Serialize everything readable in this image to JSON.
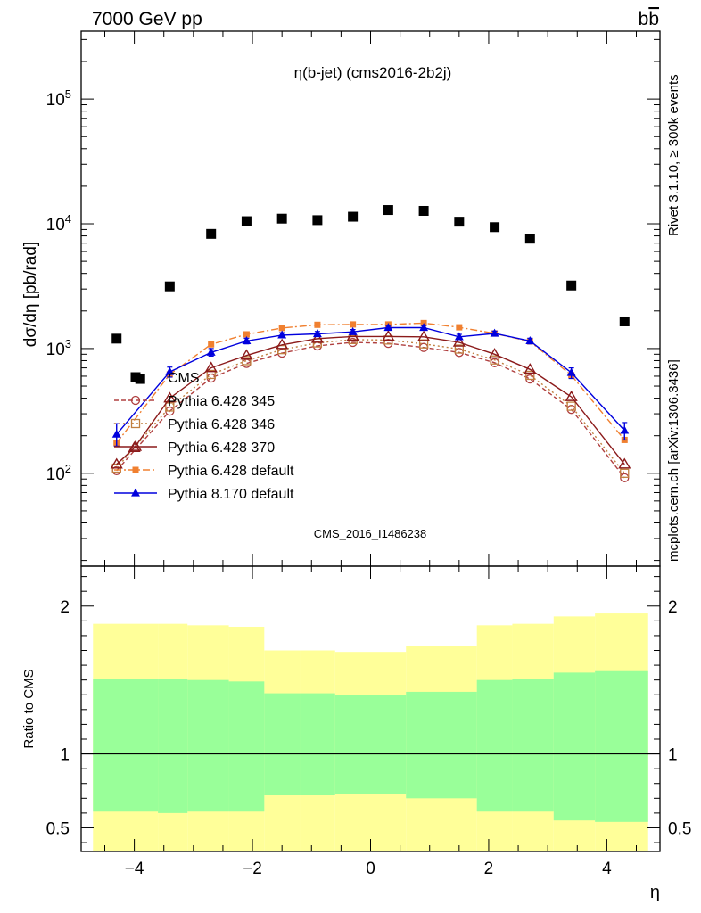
{
  "header": {
    "left": "7000 GeV pp",
    "right_base": "b",
    "right_bar": "b"
  },
  "side_labels": {
    "top": "Rivet 3.1.10, ≥ 300k events",
    "bottom": "mcplots.cern.ch [arXiv:1306.3436]"
  },
  "chart_data": [
    {
      "type": "scatter",
      "title": "η(b-jet) (cms2016-2b2j)",
      "watermark": "CMS_2016_I1486238",
      "ylabel": "dσ/dη [pb/rad]",
      "yscale": "log",
      "ylim": [
        18,
        350000
      ],
      "xlim": [
        -4.9,
        4.9
      ],
      "x": [
        -4.3,
        -3.9,
        -3.4,
        -2.7,
        -2.1,
        -1.5,
        -0.9,
        -0.3,
        0.3,
        0.9,
        1.5,
        2.1,
        2.7,
        3.4,
        4.3
      ],
      "y_ticks": [
        {
          "value": 100,
          "base": "10",
          "exp": "2"
        },
        {
          "value": 1000,
          "base": "10",
          "exp": "3"
        },
        {
          "value": 10000,
          "base": "10",
          "exp": "4"
        },
        {
          "value": 100000,
          "base": "10",
          "exp": "5"
        }
      ],
      "series": [
        {
          "name": "CMS",
          "marker": "square",
          "color": "#000000",
          "line": "none",
          "x": [
            -4.3,
            -3.9,
            -3.4,
            -2.7,
            -2.1,
            -1.5,
            -0.9,
            -0.3,
            0.3,
            0.9,
            1.5,
            2.1,
            2.7,
            3.4,
            4.3
          ],
          "y": [
            1200,
            570,
            3150,
            8300,
            10500,
            11000,
            10700,
            11400,
            12900,
            12700,
            10400,
            9400,
            7600,
            3200,
            1650
          ]
        },
        {
          "name": "Pythia 6.428 345",
          "marker": "open-circle",
          "color": "#b04040",
          "line": "dashed",
          "x": [
            -4.3,
            -3.4,
            -2.7,
            -2.1,
            -1.5,
            -0.9,
            -0.3,
            0.3,
            0.9,
            1.5,
            2.1,
            2.7,
            3.4,
            4.3
          ],
          "y": [
            105,
            315,
            580,
            760,
            920,
            1050,
            1120,
            1100,
            1020,
            930,
            770,
            570,
            325,
            92
          ]
        },
        {
          "name": "Pythia 6.428 346",
          "marker": "open-square",
          "color": "#c08040",
          "line": "dotted",
          "x": [
            -4.3,
            -3.4,
            -2.7,
            -2.1,
            -1.5,
            -0.9,
            -0.3,
            0.3,
            0.9,
            1.5,
            2.1,
            2.7,
            3.4,
            4.3
          ],
          "y": [
            110,
            340,
            620,
            800,
            980,
            1110,
            1180,
            1170,
            1090,
            990,
            810,
            610,
            345,
            100
          ]
        },
        {
          "name": "Pythia 6.428 370",
          "marker": "open-triangle",
          "color": "#8b1a1a",
          "line": "solid",
          "x": [
            -4.3,
            -4.0,
            -3.4,
            -2.7,
            -2.1,
            -1.5,
            -0.9,
            -0.3,
            0.3,
            0.9,
            1.5,
            2.1,
            2.7,
            3.4,
            4.3
          ],
          "y": [
            118,
            160,
            400,
            700,
            880,
            1070,
            1200,
            1250,
            1250,
            1240,
            1120,
            900,
            680,
            410,
            118
          ]
        },
        {
          "name": "Pythia 6.428 default",
          "marker": "square",
          "color": "#f08030",
          "line": "dashdot",
          "x": [
            -4.3,
            -3.4,
            -2.7,
            -2.1,
            -1.5,
            -0.9,
            -0.3,
            0.3,
            0.9,
            1.5,
            2.1,
            2.7,
            3.4,
            4.3
          ],
          "y": [
            175,
            620,
            1080,
            1300,
            1460,
            1550,
            1560,
            1560,
            1600,
            1480,
            1320,
            1140,
            610,
            185
          ]
        },
        {
          "name": "Pythia 8.170 default",
          "marker": "triangle",
          "color": "#0000dd",
          "line": "solid",
          "x": [
            -4.3,
            -3.4,
            -2.7,
            -2.1,
            -1.5,
            -0.9,
            -0.3,
            0.3,
            0.9,
            1.5,
            2.1,
            2.7,
            3.4,
            4.3
          ],
          "y": [
            205,
            650,
            930,
            1150,
            1280,
            1310,
            1360,
            1470,
            1470,
            1240,
            1320,
            1150,
            640,
            220
          ],
          "yerr_lo": [
            165,
            590,
            870,
            1090,
            1220,
            1250,
            1300,
            1410,
            1410,
            1180,
            1260,
            1090,
            575,
            185
          ],
          "yerr_hi": [
            250,
            710,
            1000,
            1210,
            1340,
            1370,
            1420,
            1530,
            1530,
            1300,
            1380,
            1210,
            700,
            255
          ]
        }
      ]
    },
    {
      "type": "area",
      "ylabel": "Ratio to CMS",
      "xlabel": "η",
      "xlim": [
        -4.9,
        4.9
      ],
      "ylim": [
        0.34,
        2.27
      ],
      "x_ticks": [
        {
          "value": -4,
          "label": "−4"
        },
        {
          "value": -2,
          "label": "−2"
        },
        {
          "value": 0,
          "label": "0"
        },
        {
          "value": 2,
          "label": "2"
        },
        {
          "value": 4,
          "label": "4"
        }
      ],
      "y_ticks": [
        {
          "value": 0.5,
          "label": "0.5"
        },
        {
          "value": 1,
          "label": "1"
        },
        {
          "value": 2,
          "label": "2"
        }
      ],
      "reference_line": 1,
      "bins": [
        {
          "lo": -4.7,
          "hi": -3.6,
          "yellow": [
            0.12,
            1.88
          ],
          "green": [
            0.61,
            1.51
          ]
        },
        {
          "lo": -3.6,
          "hi": -3.1,
          "yellow": [
            0.12,
            1.88
          ],
          "green": [
            0.6,
            1.51
          ]
        },
        {
          "lo": -3.1,
          "hi": -2.4,
          "yellow": [
            0.12,
            1.87
          ],
          "green": [
            0.61,
            1.5
          ]
        },
        {
          "lo": -2.4,
          "hi": -1.8,
          "yellow": [
            0.12,
            1.86
          ],
          "green": [
            0.61,
            1.49
          ]
        },
        {
          "lo": -1.8,
          "hi": -1.2,
          "yellow": [
            0.12,
            1.7
          ],
          "green": [
            0.72,
            1.41
          ]
        },
        {
          "lo": -1.2,
          "hi": -0.6,
          "yellow": [
            0.12,
            1.7
          ],
          "green": [
            0.72,
            1.41
          ]
        },
        {
          "lo": -0.6,
          "hi": 0.0,
          "yellow": [
            0.12,
            1.69
          ],
          "green": [
            0.73,
            1.4
          ]
        },
        {
          "lo": 0.0,
          "hi": 0.6,
          "yellow": [
            0.12,
            1.69
          ],
          "green": [
            0.73,
            1.4
          ]
        },
        {
          "lo": 0.6,
          "hi": 1.2,
          "yellow": [
            0.12,
            1.73
          ],
          "green": [
            0.7,
            1.42
          ]
        },
        {
          "lo": 1.2,
          "hi": 1.8,
          "yellow": [
            0.12,
            1.73
          ],
          "green": [
            0.7,
            1.42
          ]
        },
        {
          "lo": 1.8,
          "hi": 2.4,
          "yellow": [
            0.12,
            1.87
          ],
          "green": [
            0.61,
            1.5
          ]
        },
        {
          "lo": 2.4,
          "hi": 3.1,
          "yellow": [
            0.12,
            1.88
          ],
          "green": [
            0.61,
            1.51
          ]
        },
        {
          "lo": 3.1,
          "hi": 3.8,
          "yellow": [
            0.12,
            1.93
          ],
          "green": [
            0.55,
            1.55
          ]
        },
        {
          "lo": 3.8,
          "hi": 4.7,
          "yellow": [
            0.12,
            1.95
          ],
          "green": [
            0.54,
            1.56
          ]
        }
      ],
      "colors": {
        "yellow": "#ffff99",
        "green": "#99ff99"
      }
    }
  ]
}
